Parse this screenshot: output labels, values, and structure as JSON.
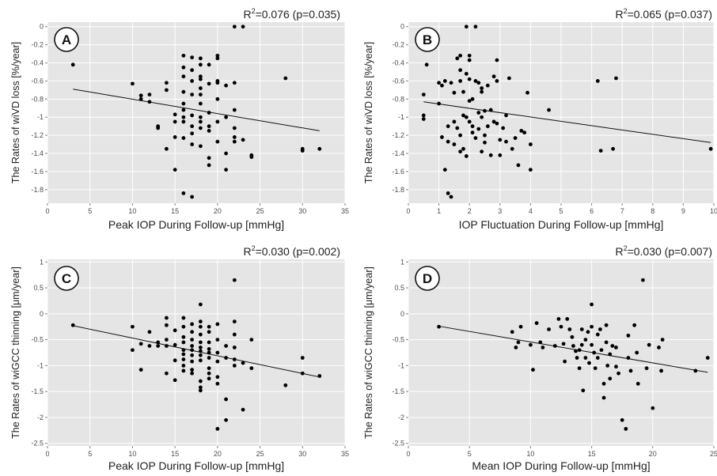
{
  "chart_data": [
    {
      "type": "scatter",
      "panel_label": "A",
      "stat": "R²=0.076 (p=0.035)",
      "stat_prefix": "R",
      "stat_sup": "2",
      "stat_rest": "=0.076 (p=0.035)",
      "xlabel": "Peak IOP During Follow-up [mmHg]",
      "ylabel": "The Rates of wiVD loss [%/year]",
      "xlim": [
        0,
        35
      ],
      "ylim": [
        -1.95,
        0.05
      ],
      "xticks": [
        0,
        5,
        10,
        15,
        20,
        25,
        30,
        35
      ],
      "yticks": [
        0,
        -0.2,
        -0.4,
        -0.6,
        -0.8,
        -1,
        -1.2,
        -1.4,
        -1.6,
        -1.8
      ],
      "ytick_labels": [
        "0",
        "-0.2",
        "-0.4",
        "-0.6",
        "-0.8",
        "-1",
        "-1.2",
        "-1.4",
        "-1.6",
        "-1.8"
      ],
      "grid": true,
      "fit_line": {
        "x": [
          3,
          32
        ],
        "y": [
          -0.69,
          -1.15
        ]
      },
      "points": [
        [
          3,
          -0.42
        ],
        [
          10,
          -0.63
        ],
        [
          11,
          -0.76
        ],
        [
          11,
          -0.8
        ],
        [
          12,
          -0.83
        ],
        [
          12,
          -0.75
        ],
        [
          13,
          -1.1
        ],
        [
          13,
          -1.12
        ],
        [
          14,
          -0.62
        ],
        [
          14,
          -0.7
        ],
        [
          14,
          -1.35
        ],
        [
          15,
          -1.22
        ],
        [
          15,
          -1.05
        ],
        [
          15,
          -0.97
        ],
        [
          15,
          -1.58
        ],
        [
          16,
          -0.32
        ],
        [
          16,
          -0.45
        ],
        [
          16,
          -0.55
        ],
        [
          16,
          -0.72
        ],
        [
          16,
          -0.85
        ],
        [
          16,
          -0.92
        ],
        [
          16,
          -1.0
        ],
        [
          16,
          -1.05
        ],
        [
          16,
          -1.23
        ],
        [
          16,
          -1.84
        ],
        [
          17,
          -0.34
        ],
        [
          17,
          -0.48
        ],
        [
          17,
          -0.6
        ],
        [
          17,
          -0.75
        ],
        [
          17,
          -0.98
        ],
        [
          17,
          -1.1
        ],
        [
          17,
          -1.18
        ],
        [
          17,
          -1.3
        ],
        [
          17,
          -1.88
        ],
        [
          18,
          -0.35
        ],
        [
          18,
          -0.42
        ],
        [
          18,
          -0.55
        ],
        [
          18,
          -0.58
        ],
        [
          18,
          -0.68
        ],
        [
          18,
          -0.75
        ],
        [
          18,
          -0.85
        ],
        [
          18,
          -1.0
        ],
        [
          18,
          -1.05
        ],
        [
          18,
          -1.12
        ],
        [
          18,
          -1.32
        ],
        [
          19,
          -0.42
        ],
        [
          19,
          -0.63
        ],
        [
          19,
          -0.95
        ],
        [
          19,
          -1.1
        ],
        [
          19,
          -1.15
        ],
        [
          19,
          -1.45
        ],
        [
          19,
          -1.53
        ],
        [
          20,
          -0.32
        ],
        [
          20,
          -0.35
        ],
        [
          20,
          -0.6
        ],
        [
          20,
          -0.62
        ],
        [
          20,
          -0.8
        ],
        [
          20,
          -1.05
        ],
        [
          20,
          -1.27
        ],
        [
          21,
          -0.65
        ],
        [
          21,
          -1.0
        ],
        [
          21,
          -1.4
        ],
        [
          21,
          -1.58
        ],
        [
          22,
          0.0
        ],
        [
          22,
          -0.62
        ],
        [
          22,
          -0.92
        ],
        [
          22,
          -1.12
        ],
        [
          22,
          -1.22
        ],
        [
          22,
          -1.27
        ],
        [
          23,
          0.0
        ],
        [
          23,
          -1.25
        ],
        [
          24,
          -1.42
        ],
        [
          24,
          -1.44
        ],
        [
          28,
          -0.57
        ],
        [
          30,
          -1.35
        ],
        [
          30,
          -1.37
        ],
        [
          32,
          -1.35
        ]
      ]
    },
    {
      "type": "scatter",
      "panel_label": "B",
      "stat": "R²=0.065 (p=0.037)",
      "stat_prefix": "R",
      "stat_sup": "2",
      "stat_rest": "=0.065 (p=0.037)",
      "xlabel": "IOP Fluctuation During Follow-up [mmHg]",
      "ylabel": "The Rates of wiVD loss [%/year]",
      "xlim": [
        0,
        10
      ],
      "ylim": [
        -1.95,
        0.05
      ],
      "xticks": [
        0,
        1,
        2,
        3,
        4,
        5,
        6,
        7,
        8,
        9,
        10
      ],
      "yticks": [
        0,
        -0.2,
        -0.4,
        -0.6,
        -0.8,
        -1,
        -1.2,
        -1.4,
        -1.6,
        -1.8
      ],
      "ytick_labels": [
        "0",
        "-0.2",
        "-0.4",
        "-0.6",
        "-0.8",
        "-1",
        "-1.2",
        "-1.4",
        "-1.6",
        "-1.8"
      ],
      "grid": true,
      "fit_line": {
        "x": [
          0.5,
          9.9
        ],
        "y": [
          -0.83,
          -1.28
        ]
      },
      "points": [
        [
          0.5,
          -0.75
        ],
        [
          0.5,
          -0.98
        ],
        [
          0.5,
          -1.02
        ],
        [
          0.6,
          -0.42
        ],
        [
          1.0,
          -0.62
        ],
        [
          1.0,
          -0.85
        ],
        [
          1.1,
          -0.65
        ],
        [
          1.1,
          -1.22
        ],
        [
          1.2,
          -0.6
        ],
        [
          1.2,
          -1.58
        ],
        [
          1.3,
          -1.1
        ],
        [
          1.3,
          -1.27
        ],
        [
          1.3,
          -1.84
        ],
        [
          1.4,
          -0.62
        ],
        [
          1.4,
          -1.88
        ],
        [
          1.5,
          -1.05
        ],
        [
          1.5,
          -1.3
        ],
        [
          1.5,
          -0.73
        ],
        [
          1.6,
          -0.35
        ],
        [
          1.6,
          -1.12
        ],
        [
          1.7,
          -0.32
        ],
        [
          1.7,
          -0.48
        ],
        [
          1.7,
          -0.6
        ],
        [
          1.7,
          -1.2
        ],
        [
          1.7,
          -1.38
        ],
        [
          1.8,
          -0.72
        ],
        [
          1.8,
          -0.98
        ],
        [
          1.8,
          -1.35
        ],
        [
          1.9,
          0.0
        ],
        [
          1.9,
          -0.52
        ],
        [
          1.9,
          -1.0
        ],
        [
          1.9,
          -1.43
        ],
        [
          2.0,
          -0.32
        ],
        [
          2.0,
          -0.37
        ],
        [
          2.0,
          -0.58
        ],
        [
          2.0,
          -0.82
        ],
        [
          2.0,
          -1.05
        ],
        [
          2.1,
          -0.8
        ],
        [
          2.1,
          -1.1
        ],
        [
          2.1,
          -1.17
        ],
        [
          2.2,
          0.0
        ],
        [
          2.2,
          -0.6
        ],
        [
          2.2,
          -1.23
        ],
        [
          2.3,
          -0.62
        ],
        [
          2.3,
          -0.95
        ],
        [
          2.3,
          -1.13
        ],
        [
          2.4,
          -0.68
        ],
        [
          2.4,
          -0.72
        ],
        [
          2.4,
          -1.0
        ],
        [
          2.4,
          -1.38
        ],
        [
          2.5,
          -0.93
        ],
        [
          2.5,
          -1.2
        ],
        [
          2.5,
          -1.28
        ],
        [
          2.6,
          -0.65
        ],
        [
          2.6,
          -1.1
        ],
        [
          2.7,
          -0.92
        ],
        [
          2.7,
          -1.42
        ],
        [
          2.8,
          -0.55
        ],
        [
          2.8,
          -1.05
        ],
        [
          2.9,
          -0.37
        ],
        [
          2.9,
          -0.6
        ],
        [
          2.9,
          -1.07
        ],
        [
          3.0,
          -1.25
        ],
        [
          3.0,
          -1.42
        ],
        [
          3.1,
          -1.12
        ],
        [
          3.2,
          -0.98
        ],
        [
          3.2,
          -1.27
        ],
        [
          3.3,
          -0.57
        ],
        [
          3.4,
          -1.35
        ],
        [
          3.5,
          -1.23
        ],
        [
          3.6,
          -1.53
        ],
        [
          3.7,
          -1.15
        ],
        [
          3.8,
          -1.17
        ],
        [
          3.9,
          -0.73
        ],
        [
          4.0,
          -1.3
        ],
        [
          4.0,
          -1.58
        ],
        [
          4.6,
          -0.92
        ],
        [
          6.2,
          -0.6
        ],
        [
          6.3,
          -1.37
        ],
        [
          6.7,
          -1.35
        ],
        [
          6.8,
          -0.57
        ],
        [
          9.9,
          -1.35
        ]
      ]
    },
    {
      "type": "scatter",
      "panel_label": "C",
      "stat": "R²=0.030 (p=0.002)",
      "stat_prefix": "R",
      "stat_sup": "2",
      "stat_rest": "=0.030 (p=0.002)",
      "xlabel": "Peak IOP During Follow-up [mmHg]",
      "ylabel": "The Rates of wiGCC thinning [μm/year]",
      "xlim": [
        0,
        35
      ],
      "ylim": [
        -2.55,
        1.05
      ],
      "xticks": [
        0,
        5,
        10,
        15,
        20,
        25,
        30,
        35
      ],
      "yticks": [
        1,
        0.5,
        0,
        -0.5,
        -1,
        -1.5,
        -2,
        -2.5
      ],
      "ytick_labels": [
        "1",
        "0.5",
        "0",
        "-0.5",
        "-1",
        "-1.5",
        "-2",
        "-2.5"
      ],
      "grid": true,
      "fit_line": {
        "x": [
          3,
          32
        ],
        "y": [
          -0.23,
          -1.22
        ]
      },
      "points": [
        [
          3,
          -0.22
        ],
        [
          10,
          -0.25
        ],
        [
          10,
          -0.7
        ],
        [
          11,
          -0.58
        ],
        [
          11,
          -1.08
        ],
        [
          12,
          -0.35
        ],
        [
          12,
          -0.62
        ],
        [
          13,
          -0.55
        ],
        [
          13,
          -0.62
        ],
        [
          14,
          -0.22
        ],
        [
          14,
          -0.5
        ],
        [
          14,
          -0.62
        ],
        [
          14,
          -1.15
        ],
        [
          14,
          -0.08
        ],
        [
          15,
          -0.32
        ],
        [
          15,
          -0.6
        ],
        [
          15,
          -0.9
        ],
        [
          15,
          -1.28
        ],
        [
          16,
          -0.08
        ],
        [
          16,
          -0.25
        ],
        [
          16,
          -0.45
        ],
        [
          16,
          -0.55
        ],
        [
          16,
          -0.7
        ],
        [
          16,
          -0.78
        ],
        [
          16,
          -0.88
        ],
        [
          16,
          -1.0
        ],
        [
          16,
          -1.1
        ],
        [
          17,
          -0.2
        ],
        [
          17,
          -0.35
        ],
        [
          17,
          -0.5
        ],
        [
          17,
          -0.62
        ],
        [
          17,
          -0.7
        ],
        [
          17,
          -0.8
        ],
        [
          17,
          -0.92
        ],
        [
          17,
          -1.08
        ],
        [
          17,
          -1.15
        ],
        [
          18,
          0.18
        ],
        [
          18,
          -0.15
        ],
        [
          18,
          -0.25
        ],
        [
          18,
          -0.4
        ],
        [
          18,
          -0.55
        ],
        [
          18,
          -0.65
        ],
        [
          18,
          -0.72
        ],
        [
          18,
          -0.8
        ],
        [
          18,
          -0.9
        ],
        [
          18,
          -1.3
        ],
        [
          18,
          -1.42
        ],
        [
          18,
          -1.48
        ],
        [
          19,
          -0.25
        ],
        [
          19,
          -0.35
        ],
        [
          19,
          -0.55
        ],
        [
          19,
          -0.68
        ],
        [
          19,
          -0.75
        ],
        [
          19,
          -0.85
        ],
        [
          19,
          -1.05
        ],
        [
          19,
          -1.15
        ],
        [
          19,
          -1.25
        ],
        [
          20,
          -0.2
        ],
        [
          20,
          -0.5
        ],
        [
          20,
          -0.75
        ],
        [
          20,
          -0.92
        ],
        [
          20,
          -1.22
        ],
        [
          20,
          -1.35
        ],
        [
          20,
          -2.22
        ],
        [
          21,
          -0.62
        ],
        [
          21,
          -0.85
        ],
        [
          21,
          -1.65
        ],
        [
          21,
          -2.05
        ],
        [
          22,
          0.65
        ],
        [
          22,
          -0.15
        ],
        [
          22,
          -0.4
        ],
        [
          22,
          -0.65
        ],
        [
          22,
          -0.88
        ],
        [
          22,
          -1.0
        ],
        [
          23,
          -0.95
        ],
        [
          23,
          -1.85
        ],
        [
          24,
          -0.5
        ],
        [
          24,
          -1.05
        ],
        [
          28,
          -1.38
        ],
        [
          30,
          -0.85
        ],
        [
          30,
          -1.15
        ],
        [
          32,
          -1.2
        ]
      ]
    },
    {
      "type": "scatter",
      "panel_label": "D",
      "stat": "R²=0.030 (p=0.007)",
      "stat_prefix": "R",
      "stat_sup": "2",
      "stat_rest": "=0.030 (p=0.007)",
      "xlabel": "Mean IOP During Follow-up [mmHg]",
      "ylabel": "The Rates of wiGCC thinning [μm/year]",
      "xlim": [
        0,
        25
      ],
      "ylim": [
        -2.55,
        1.05
      ],
      "xticks": [
        0,
        5,
        10,
        15,
        20,
        25
      ],
      "yticks": [
        1,
        0.5,
        0,
        -0.5,
        -1,
        -1.5,
        -2,
        -2.5
      ],
      "ytick_labels": [
        "1",
        "0.5",
        "0",
        "-0.5",
        "-1",
        "-1.5",
        "-2",
        "-2.5"
      ],
      "grid": true,
      "fit_line": {
        "x": [
          2.5,
          24.5
        ],
        "y": [
          -0.24,
          -1.13
        ]
      },
      "points": [
        [
          2.5,
          -0.25
        ],
        [
          8.5,
          -0.35
        ],
        [
          8.8,
          -0.65
        ],
        [
          9.0,
          -0.55
        ],
        [
          9.2,
          -0.25
        ],
        [
          10.0,
          -0.6
        ],
        [
          10.2,
          -1.08
        ],
        [
          10.5,
          -0.18
        ],
        [
          10.8,
          -0.55
        ],
        [
          11.0,
          -0.65
        ],
        [
          11.5,
          -0.3
        ],
        [
          12.0,
          -0.62
        ],
        [
          12.3,
          -0.1
        ],
        [
          12.5,
          -0.25
        ],
        [
          12.7,
          -0.58
        ],
        [
          12.8,
          -0.92
        ],
        [
          13.0,
          -0.1
        ],
        [
          13.2,
          -0.3
        ],
        [
          13.4,
          -0.45
        ],
        [
          13.5,
          -0.62
        ],
        [
          13.7,
          -0.72
        ],
        [
          13.8,
          -0.85
        ],
        [
          14.0,
          -0.7
        ],
        [
          14.0,
          -1.05
        ],
        [
          14.2,
          -0.3
        ],
        [
          14.2,
          -0.6
        ],
        [
          14.3,
          -1.48
        ],
        [
          14.5,
          -0.5
        ],
        [
          14.5,
          -0.85
        ],
        [
          14.7,
          -0.35
        ],
        [
          14.8,
          -0.95
        ],
        [
          15.0,
          0.18
        ],
        [
          15.0,
          -0.25
        ],
        [
          15.0,
          -0.6
        ],
        [
          15.2,
          -0.75
        ],
        [
          15.3,
          -1.05
        ],
        [
          15.5,
          -0.4
        ],
        [
          15.5,
          -0.85
        ],
        [
          15.7,
          -0.3
        ],
        [
          15.8,
          -0.7
        ],
        [
          16.0,
          -1.35
        ],
        [
          16.0,
          -1.62
        ],
        [
          16.2,
          -0.22
        ],
        [
          16.2,
          -0.55
        ],
        [
          16.3,
          -1.0
        ],
        [
          16.5,
          -0.78
        ],
        [
          16.5,
          -1.25
        ],
        [
          16.7,
          -0.62
        ],
        [
          17.0,
          -0.65
        ],
        [
          17.0,
          -1.02
        ],
        [
          17.2,
          -1.15
        ],
        [
          17.5,
          -2.05
        ],
        [
          17.8,
          -2.22
        ],
        [
          18.0,
          -0.42
        ],
        [
          18.0,
          -0.85
        ],
        [
          18.2,
          -1.1
        ],
        [
          18.5,
          -0.22
        ],
        [
          18.7,
          -0.75
        ],
        [
          18.8,
          -1.35
        ],
        [
          19.2,
          0.65
        ],
        [
          19.5,
          -1.05
        ],
        [
          19.7,
          -0.6
        ],
        [
          20.0,
          -1.82
        ],
        [
          20.5,
          -0.65
        ],
        [
          20.7,
          -1.1
        ],
        [
          20.8,
          -0.5
        ],
        [
          23.5,
          -1.1
        ],
        [
          24.5,
          -0.85
        ]
      ]
    }
  ]
}
